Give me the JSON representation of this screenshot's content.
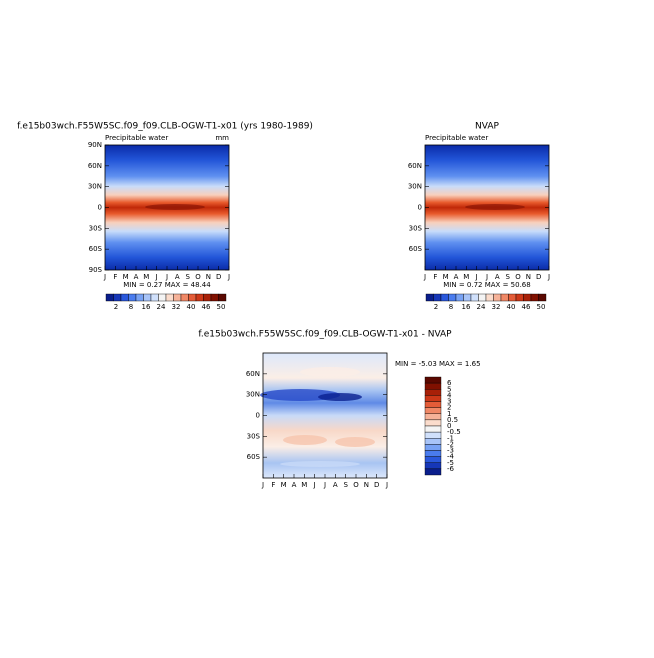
{
  "panels": [
    {
      "title": "f.e15b03wch.F55W5SC.f09_f09.CLB-OGW-T1-x01 (yrs 1980-1989)",
      "left_label": "Precipitable water",
      "right_label": "mm",
      "yticks": [
        "90N",
        "60N",
        "30N",
        "0",
        "30S",
        "60S",
        "90S"
      ],
      "xticks": [
        "J",
        "F",
        "M",
        "A",
        "M",
        "J",
        "J",
        "A",
        "S",
        "O",
        "N",
        "D",
        "J"
      ],
      "stats": "MIN =   0.27 MAX =   48.44",
      "colorbar": [
        "2",
        "8",
        "16",
        "24",
        "32",
        "40",
        "46",
        "50"
      ]
    },
    {
      "title": "NVAP",
      "left_label": "Precipitable water",
      "yticks": [
        "60N",
        "30N",
        "0",
        "30S",
        "60S"
      ],
      "xticks": [
        "J",
        "F",
        "M",
        "A",
        "M",
        "J",
        "J",
        "A",
        "S",
        "O",
        "N",
        "D",
        "J"
      ],
      "stats": "MIN =   0.72 MAX =   50.68",
      "colorbar": [
        "2",
        "8",
        "16",
        "24",
        "32",
        "40",
        "46",
        "50"
      ]
    },
    {
      "title": "f.e15b03wch.F55W5SC.f09_f09.CLB-OGW-T1-x01 - NVAP",
      "yticks": [
        "60N",
        "30N",
        "0",
        "30S",
        "60S"
      ],
      "xticks": [
        "J",
        "F",
        "M",
        "A",
        "M",
        "J",
        "J",
        "A",
        "S",
        "O",
        "N",
        "D",
        "J"
      ],
      "stats": "MIN =  -5.03 MAX =   1.65",
      "colorbar": [
        "6",
        "5",
        "4",
        "3",
        "2",
        "1",
        "0.5",
        "0",
        "-0.5",
        "-1",
        "-2",
        "-3",
        "-4",
        "-5",
        "-6"
      ]
    }
  ]
}
